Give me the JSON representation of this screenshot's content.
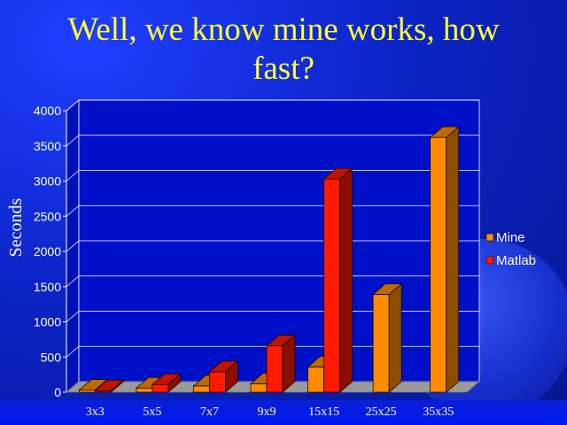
{
  "slide": {
    "title": "Well, we know mine works, how fast?"
  },
  "chart_data": {
    "type": "bar",
    "title": "",
    "xlabel": "",
    "ylabel": "Seconds",
    "ylim": [
      0,
      4000
    ],
    "yticks": [
      0,
      500,
      1000,
      1500,
      2000,
      2500,
      3000,
      3500,
      4000
    ],
    "grid": true,
    "legend_position": "right",
    "categories": [
      "3x3",
      "5x5",
      "7x7",
      "9x9",
      "15x15",
      "25x25",
      "35x35"
    ],
    "series": [
      {
        "name": "Mine",
        "color": "#ff8c00",
        "values": [
          30,
          60,
          90,
          120,
          360,
          1390,
          3620
        ]
      },
      {
        "name": "Matlab",
        "color": "#ff1a00",
        "values": [
          20,
          110,
          290,
          660,
          3030,
          null,
          null
        ]
      }
    ]
  }
}
